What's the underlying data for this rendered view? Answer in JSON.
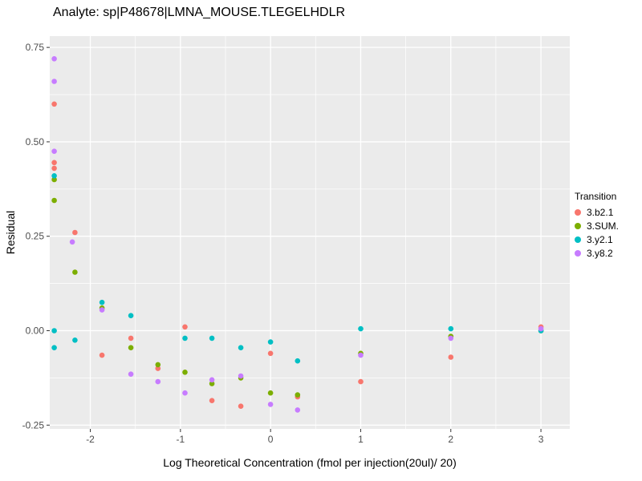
{
  "chart_data": {
    "type": "scatter",
    "title": "Analyte: sp|P48678|LMNA_MOUSE.TLEGELHDLR",
    "xlabel": "Log Theoretical Concentration (fmol per injection(20ul)/ 20)",
    "ylabel": "Residual",
    "xlim": [
      -2.45,
      3.32
    ],
    "ylim": [
      -0.26,
      0.78
    ],
    "x_ticks": [
      -2,
      -1,
      0,
      1,
      2,
      3
    ],
    "x_tick_labels": [
      "-2",
      "-1",
      "0",
      "1",
      "2",
      "3"
    ],
    "y_ticks": [
      -0.25,
      0,
      0.25,
      0.5,
      0.75
    ],
    "y_tick_labels": [
      "-0.25",
      "0.00",
      "0.25",
      "0.50",
      "0.75"
    ],
    "grid": true,
    "panel_bg": "#EBEBEB",
    "grid_color": "#FFFFFF",
    "tick_label_color": "#4D4D4D",
    "legend": {
      "title": "Transition",
      "position": "right"
    },
    "series": [
      {
        "name": "3.b2.1",
        "color": "#F8766D",
        "points": [
          [
            -2.4,
            0.6
          ],
          [
            -2.4,
            0.445
          ],
          [
            -2.4,
            0.43
          ],
          [
            -2.17,
            0.26
          ],
          [
            -1.87,
            -0.065
          ],
          [
            -1.55,
            -0.02
          ],
          [
            -1.25,
            -0.1
          ],
          [
            -0.95,
            0.01
          ],
          [
            -0.65,
            -0.185
          ],
          [
            -0.33,
            -0.2
          ],
          [
            0,
            -0.06
          ],
          [
            0.3,
            -0.175
          ],
          [
            1,
            -0.135
          ],
          [
            2,
            -0.07
          ],
          [
            3,
            0.01
          ]
        ]
      },
      {
        "name": "3.SUM.",
        "color": "#7CAE00",
        "points": [
          [
            -2.4,
            0.4
          ],
          [
            -2.4,
            0.345
          ],
          [
            -2.17,
            0.155
          ],
          [
            -1.87,
            0.06
          ],
          [
            -1.55,
            -0.045
          ],
          [
            -1.25,
            -0.09
          ],
          [
            -0.95,
            -0.11
          ],
          [
            -0.65,
            -0.14
          ],
          [
            -0.33,
            -0.125
          ],
          [
            0,
            -0.165
          ],
          [
            0.3,
            -0.17
          ],
          [
            1,
            -0.06
          ],
          [
            2,
            -0.015
          ],
          [
            3,
            0.0
          ]
        ]
      },
      {
        "name": "3.y2.1",
        "color": "#00BFC4",
        "points": [
          [
            -2.4,
            0.41
          ],
          [
            -2.4,
            0.0
          ],
          [
            -2.4,
            -0.045
          ],
          [
            -2.17,
            -0.025
          ],
          [
            -1.87,
            0.075
          ],
          [
            -1.55,
            0.04
          ],
          [
            -0.95,
            -0.02
          ],
          [
            -0.65,
            -0.02
          ],
          [
            -0.33,
            -0.045
          ],
          [
            0,
            -0.03
          ],
          [
            0.3,
            -0.08
          ],
          [
            1,
            0.005
          ],
          [
            2,
            0.005
          ],
          [
            3,
            0.0
          ]
        ]
      },
      {
        "name": "3.y8.2",
        "color": "#C77CFF",
        "points": [
          [
            -2.4,
            0.72
          ],
          [
            -2.4,
            0.66
          ],
          [
            -2.4,
            0.475
          ],
          [
            -2.2,
            0.235
          ],
          [
            -1.87,
            0.055
          ],
          [
            -1.55,
            -0.115
          ],
          [
            -1.25,
            -0.135
          ],
          [
            -0.95,
            -0.165
          ],
          [
            -0.65,
            -0.13
          ],
          [
            -0.33,
            -0.12
          ],
          [
            0,
            -0.195
          ],
          [
            0.3,
            -0.21
          ],
          [
            1,
            -0.065
          ],
          [
            2,
            -0.02
          ],
          [
            3,
            0.005
          ]
        ]
      }
    ]
  }
}
